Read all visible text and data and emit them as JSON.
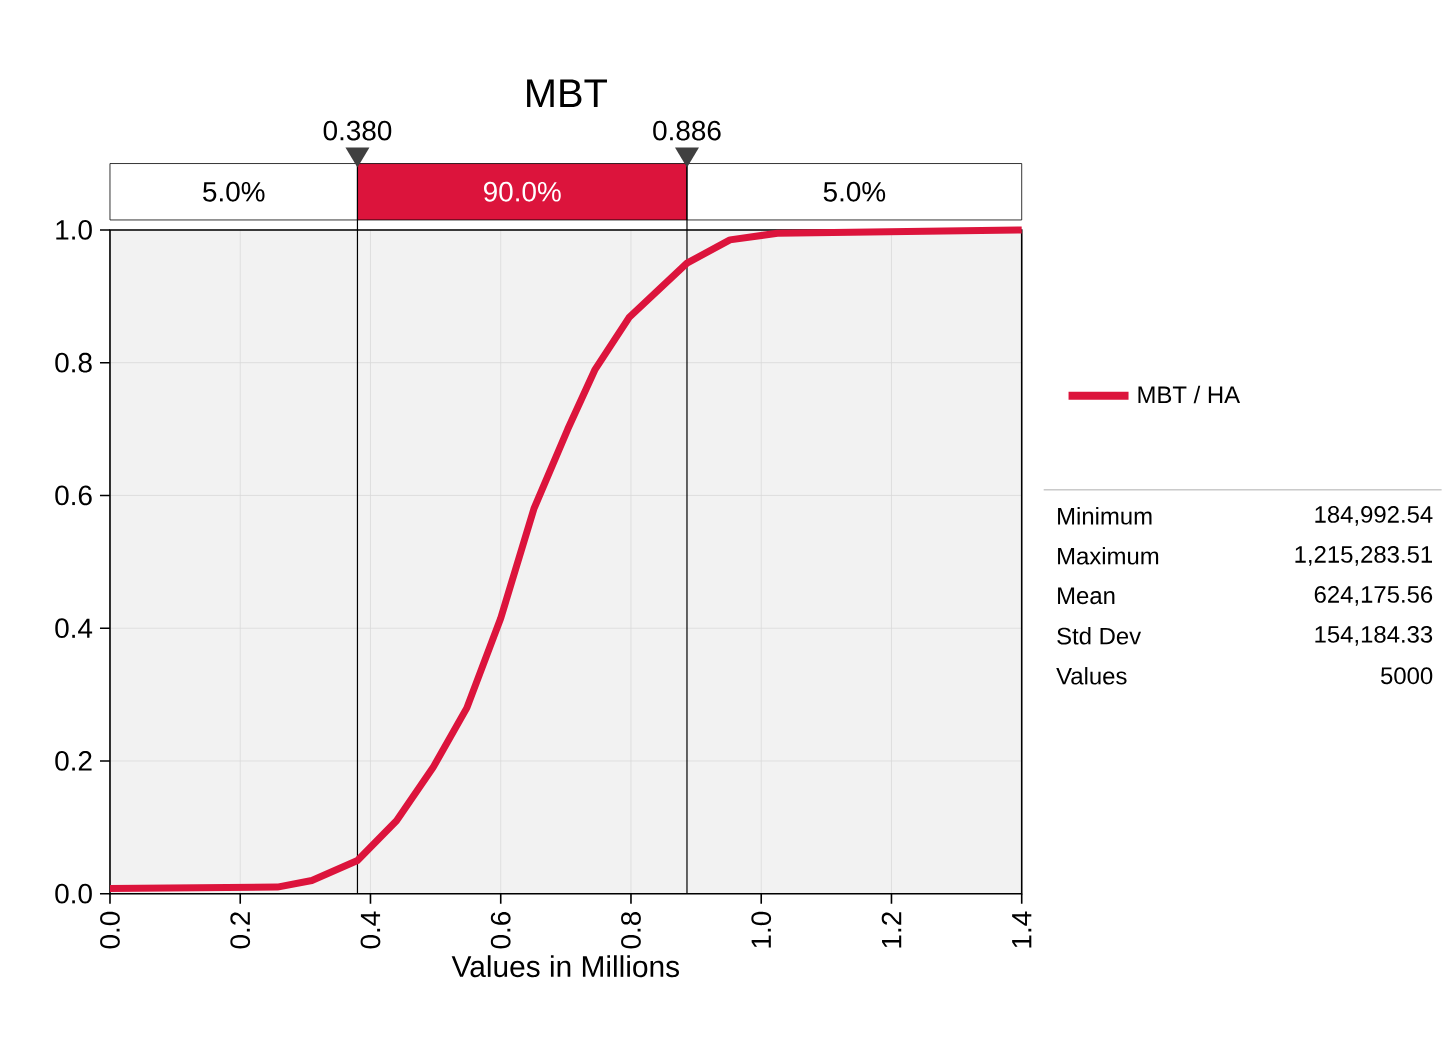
{
  "chart_data": {
    "type": "line",
    "title": "MBT",
    "xlabel": "Values in Millions",
    "x": [
      0,
      0.257,
      0.31,
      0.38,
      0.44,
      0.496,
      0.548,
      0.6,
      0.651,
      0.703,
      0.745,
      0.797,
      0.886,
      0.952,
      1.025,
      1.4
    ],
    "series": [
      {
        "name": "MBT / HA",
        "color": "#dc143c",
        "values": [
          0.008,
          0.01,
          0.02,
          0.05,
          0.11,
          0.19,
          0.28,
          0.415,
          0.58,
          0.7,
          0.79,
          0.868,
          0.95,
          0.985,
          0.995,
          1.0
        ]
      }
    ],
    "xlim": [
      0,
      1.4
    ],
    "xticks": [
      {
        "value": 0,
        "label": "0.0"
      },
      {
        "value": 0.2,
        "label": "0.2"
      },
      {
        "value": 0.4,
        "label": "0.4"
      },
      {
        "value": 0.6,
        "label": "0.6"
      },
      {
        "value": 0.8,
        "label": "0.8"
      },
      {
        "value": 1.0,
        "label": "1.0"
      },
      {
        "value": 1.2,
        "label": "1.2"
      },
      {
        "value": 1.4,
        "label": "1.4"
      }
    ],
    "ylim": [
      0,
      1
    ],
    "yticks": [
      {
        "value": 0,
        "label": "0.0"
      },
      {
        "value": 0.2,
        "label": "0.2"
      },
      {
        "value": 0.4,
        "label": "0.4"
      },
      {
        "value": 0.6,
        "label": "0.6"
      },
      {
        "value": 0.8,
        "label": "0.8"
      },
      {
        "value": 1.0,
        "label": "1.0"
      }
    ],
    "ref_lines": [
      {
        "axis": "x",
        "value": 0.38,
        "label": "0.380"
      },
      {
        "axis": "x",
        "value": 0.886,
        "label": "0.886"
      }
    ],
    "annotations": [
      "5.0%",
      "90.0%",
      "5.0%",
      "Minimum",
      "184,992.54",
      "Maximum",
      "1,215,283.51",
      "Mean",
      "624,175.56",
      "Std Dev",
      "154,184.33",
      "Values",
      "5000"
    ],
    "grid": true,
    "legend": "right",
    "marker": "none",
    "line_style": "solid"
  }
}
